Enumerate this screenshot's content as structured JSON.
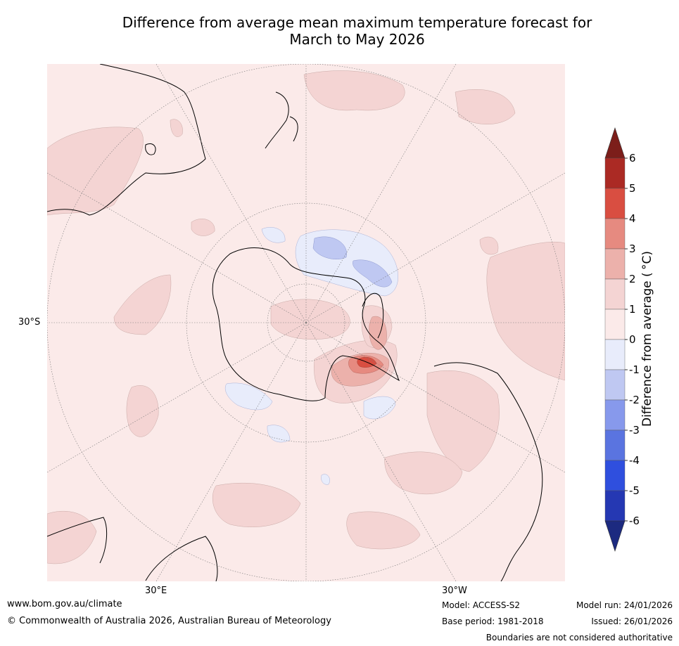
{
  "title": {
    "line1": "Difference from average mean maximum temperature forecast for",
    "line2": "March to May 2026"
  },
  "map": {
    "projection": "south polar stereographic",
    "graticule_labels": {
      "lat_30s": "30°S",
      "lon_30e": "30°E",
      "lon_30w": "30°W"
    },
    "background_color": "#fbeae9",
    "colors": {
      "anomaly_0_1": "#fbeae9",
      "anomaly_1_2": "#f4d4d3",
      "anomaly_2_3": "#ecb1ab",
      "anomaly_3_4": "#e68a80",
      "anomaly_4_5": "#d94e41",
      "anomaly_5_6": "#ab2a24",
      "anomaly_m1_0": "#e8ecfb",
      "anomaly_m2_m1": "#bfc8f2"
    }
  },
  "colorbar": {
    "label": "Difference from average ( °C)",
    "ticks": [
      "6",
      "5",
      "4",
      "3",
      "2",
      "1",
      "0",
      "-1",
      "-2",
      "-3",
      "-4",
      "-5",
      "-6"
    ],
    "colors": [
      "#7c1e1a",
      "#ab2a24",
      "#d94e41",
      "#e68a80",
      "#ecb1ab",
      "#f4d4d3",
      "#fbeae9",
      "#e8ecfb",
      "#bfc8f2",
      "#8799ec",
      "#5a74e0",
      "#2f4fde",
      "#2538b3",
      "#1c2a80"
    ]
  },
  "footer": {
    "website": "www.bom.gov.au/climate",
    "copyright": "© Commonwealth of Australia 2026, Australian Bureau of Meteorology",
    "model": "Model: ACCESS-S2",
    "base_period": "Base period: 1981-2018",
    "model_run": "Model run: 24/01/2026",
    "issued": "Issued: 26/01/2026",
    "disclaimer": "Boundaries are not considered authoritative"
  }
}
